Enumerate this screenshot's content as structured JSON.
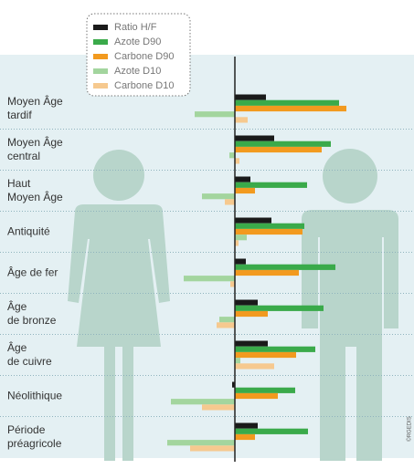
{
  "chart_data": {
    "type": "hbar",
    "categories": [
      "Moyen Âge\ntardif",
      "Moyen Âge\ncentral",
      "Haut\nMoyen Âge",
      "Antiquité",
      "Âge de fer",
      "Âge\nde bronze",
      "Âge\nde cuivre",
      "Néolithique",
      "Période\npréagricole"
    ],
    "series": [
      {
        "name": "Ratio H/F",
        "color": "#1a1a1a",
        "values": [
          34,
          43,
          17,
          40,
          12,
          25,
          36,
          -3,
          25
        ]
      },
      {
        "name": "Azote D90",
        "color": "#3aaa4a",
        "values": [
          114,
          105,
          79,
          76,
          110,
          97,
          88,
          66,
          80
        ]
      },
      {
        "name": "Carbone D90",
        "color": "#f29a1f",
        "values": [
          122,
          95,
          22,
          74,
          70,
          36,
          67,
          47,
          22
        ]
      },
      {
        "name": "Azote D10",
        "color": "#a3d59e",
        "values": [
          -44,
          -6,
          -36,
          13,
          -56,
          -17,
          6,
          -70,
          -74
        ]
      },
      {
        "name": "Carbone D10",
        "color": "#f6c98f",
        "values": [
          14,
          5,
          -11,
          4,
          -5,
          -20,
          43,
          -36,
          -49
        ]
      }
    ],
    "xlim": [
      -257,
      196
    ],
    "credit": "©RGEDIS"
  }
}
